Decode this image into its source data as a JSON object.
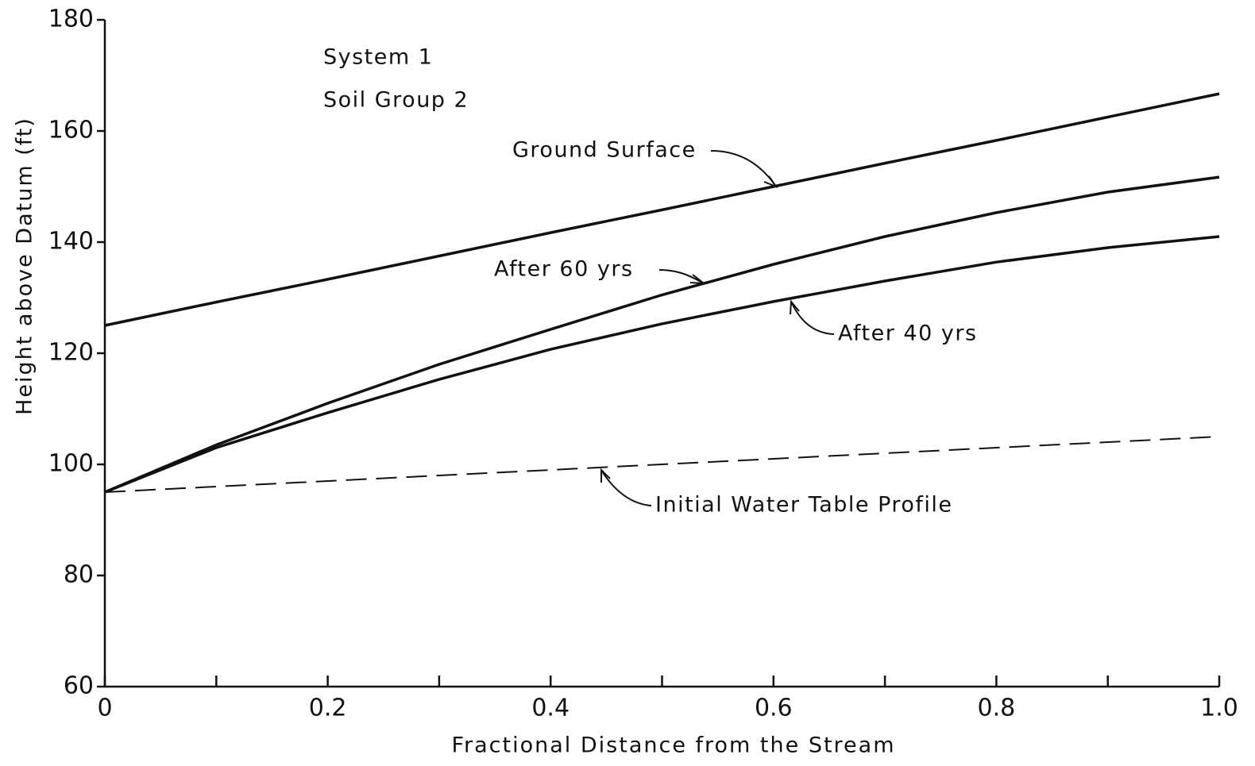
{
  "chart_data": {
    "type": "line",
    "xlabel": "Fractional Distance from the Stream",
    "ylabel": "Height above Datum (ft)",
    "annotations": [
      "System 1",
      "Soil Group 2"
    ],
    "x": [
      0,
      0.1,
      0.2,
      0.3,
      0.4,
      0.5,
      0.6,
      0.7,
      0.8,
      0.9,
      1.0
    ],
    "series": [
      {
        "name": "Ground Surface",
        "color": "#111111",
        "style": "solid",
        "values": [
          125,
          129.2,
          133.3,
          137.5,
          141.7,
          145.8,
          150,
          154.2,
          158.3,
          162.5,
          166.7
        ]
      },
      {
        "name": "After 60 yrs",
        "color": "#111111",
        "style": "solid",
        "values": [
          95,
          103.5,
          111,
          118,
          124.3,
          130.5,
          136,
          141,
          145.3,
          149,
          151.7
        ]
      },
      {
        "name": "After 40 yrs",
        "color": "#111111",
        "style": "solid",
        "values": [
          95,
          103,
          109.3,
          115.3,
          120.7,
          125.3,
          129.3,
          133,
          136.4,
          139,
          141
        ]
      },
      {
        "name": "Initial Water Table Profile",
        "color": "#111111",
        "style": "dashed",
        "values": [
          95,
          96,
          97,
          98,
          99,
          100,
          101,
          102,
          103,
          104,
          105
        ]
      }
    ],
    "xlim": [
      0,
      1
    ],
    "ylim": [
      60,
      180
    ],
    "xticks": [
      0,
      0.2,
      0.4,
      0.6,
      0.8,
      {
        "value": 1,
        "label": "1.0"
      }
    ],
    "xminor_ticks": [
      0.1,
      0.3,
      0.5,
      0.7,
      0.9
    ],
    "yticks": [
      60,
      80,
      100,
      120,
      140,
      160,
      180
    ],
    "grid": false
  }
}
